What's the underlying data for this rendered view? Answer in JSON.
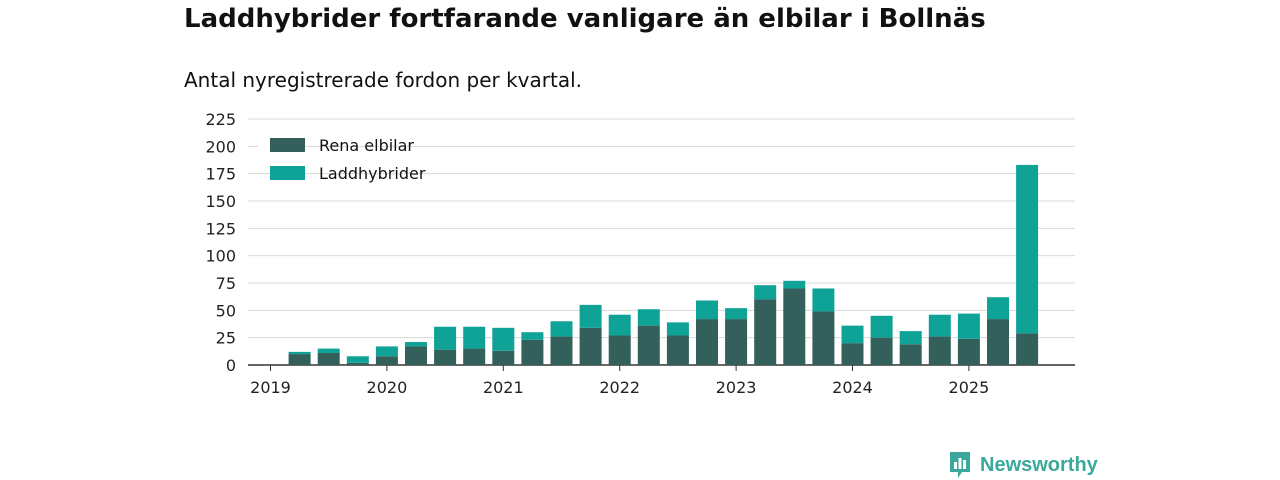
{
  "header": {
    "title": "Laddhybrider fortfarande vanligare än elbilar i Bollnäs",
    "subtitle": "Antal nyregistrerade fordon per kvartal."
  },
  "brand": {
    "name": "Newsworthy",
    "color": "#3aa89a"
  },
  "chart_data": {
    "type": "bar",
    "stacked": true,
    "title": "Laddhybrider fortfarande vanligare än elbilar i Bollnäs",
    "subtitle": "Antal nyregistrerade fordon per kvartal.",
    "xlabel": "",
    "ylabel": "",
    "ylim": [
      0,
      225
    ],
    "yticks": [
      0,
      25,
      50,
      75,
      100,
      125,
      150,
      175,
      200,
      225
    ],
    "grid": true,
    "legend_position": "top-left",
    "year_labels": [
      "2019",
      "2020",
      "2021",
      "2022",
      "2023",
      "2024",
      "2025"
    ],
    "categories": [
      "2019 Q1",
      "2019 Q2",
      "2019 Q3",
      "2019 Q4",
      "2020 Q1",
      "2020 Q2",
      "2020 Q3",
      "2020 Q4",
      "2021 Q1",
      "2021 Q2",
      "2021 Q3",
      "2021 Q4",
      "2022 Q1",
      "2022 Q2",
      "2022 Q3",
      "2022 Q4",
      "2023 Q1",
      "2023 Q2",
      "2023 Q3",
      "2023 Q4",
      "2024 Q1",
      "2024 Q2",
      "2024 Q3",
      "2024 Q4",
      "2025 Q1",
      "2025 Q2",
      "2025 Q3"
    ],
    "series": [
      {
        "name": "Rena elbilar",
        "color": "#33605a",
        "values": [
          0,
          10,
          11,
          2,
          8,
          17,
          14,
          15,
          13,
          23,
          26,
          34,
          27,
          36,
          27,
          42,
          42,
          60,
          70,
          49,
          20,
          25,
          19,
          26,
          24,
          42,
          29
        ]
      },
      {
        "name": "Laddhybrider",
        "color": "#0fa297",
        "values": [
          0,
          2,
          4,
          6,
          9,
          4,
          21,
          20,
          21,
          7,
          14,
          21,
          19,
          15,
          12,
          17,
          10,
          13,
          7,
          21,
          16,
          20,
          12,
          20,
          23,
          20,
          154
        ]
      }
    ]
  }
}
